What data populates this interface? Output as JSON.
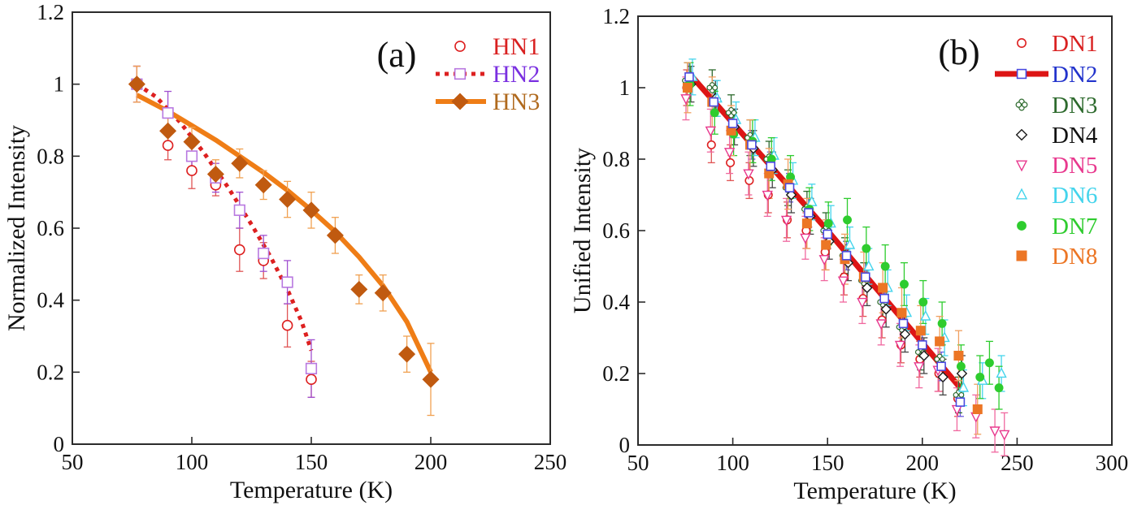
{
  "figure": {
    "background": "#ffffff",
    "frame_color": "#2b2b2b"
  },
  "chart_data": [
    {
      "panel": "a",
      "type": "scatter",
      "error_bars": true,
      "annotation": {
        "text": "(a)"
      },
      "x_axis": {
        "label": "Temperature (K)",
        "min": 50,
        "max": 250,
        "ticks": [
          "50",
          "100",
          "150",
          "200",
          "250"
        ]
      },
      "y_axis": {
        "label": "Normalized Intensity",
        "min": 0,
        "max": 1.2,
        "ticks": [
          "0",
          "0.2",
          "0.4",
          "0.6",
          "0.8",
          "1",
          "1.2"
        ]
      },
      "legend_position": "top-right",
      "series": [
        {
          "name": "HN1",
          "marker": "circle_open",
          "color": "#dd2020",
          "err_color": "#e05555",
          "label_color": "#d92121",
          "x": [
            77,
            90,
            100,
            110,
            120,
            130,
            140,
            150
          ],
          "y": [
            1.0,
            0.83,
            0.76,
            0.72,
            0.54,
            0.51,
            0.33,
            0.18
          ],
          "err": [
            0.05,
            0.04,
            0.05,
            0.03,
            0.06,
            0.05,
            0.06,
            0.05
          ]
        },
        {
          "name": "HN2",
          "marker": "square_open",
          "color": "#b878e0",
          "err_color": "#a050d0",
          "label_color": "#7a2fe0",
          "x": [
            77,
            90,
            100,
            110,
            120,
            130,
            140,
            150
          ],
          "y": [
            1.0,
            0.92,
            0.8,
            0.74,
            0.65,
            0.53,
            0.45,
            0.21
          ],
          "err": [
            0.05,
            0.06,
            0.04,
            0.04,
            0.05,
            0.05,
            0.06,
            0.08
          ],
          "fit": {
            "style": "dotted",
            "color": "#dd2020",
            "width": 5,
            "points": [
              [
                77,
                1.0
              ],
              [
                85,
                0.965
              ],
              [
                95,
                0.895
              ],
              [
                105,
                0.81
              ],
              [
                115,
                0.715
              ],
              [
                125,
                0.61
              ],
              [
                133,
                0.52
              ],
              [
                140,
                0.43
              ],
              [
                146,
                0.34
              ],
              [
                150,
                0.26
              ]
            ]
          }
        },
        {
          "name": "HN3",
          "marker": "diamond_filled",
          "color": "#c05a10",
          "err_color": "#f0a050",
          "label_color": "#b06a1e",
          "x": [
            77,
            90,
            100,
            110,
            120,
            130,
            140,
            150,
            160,
            170,
            180,
            190,
            200
          ],
          "y": [
            1.0,
            0.87,
            0.84,
            0.75,
            0.78,
            0.72,
            0.68,
            0.65,
            0.58,
            0.43,
            0.42,
            0.25,
            0.18
          ],
          "err": [
            0.05,
            0.04,
            0.04,
            0.04,
            0.04,
            0.04,
            0.05,
            0.05,
            0.05,
            0.04,
            0.05,
            0.05,
            0.1
          ],
          "fit": {
            "style": "solid",
            "color": "#ef7d16",
            "width": 6,
            "points": [
              [
                77,
                0.97
              ],
              [
                90,
                0.925
              ],
              [
                100,
                0.885
              ],
              [
                110,
                0.845
              ],
              [
                120,
                0.8
              ],
              [
                130,
                0.755
              ],
              [
                140,
                0.705
              ],
              [
                150,
                0.65
              ],
              [
                160,
                0.59
              ],
              [
                170,
                0.52
              ],
              [
                180,
                0.44
              ],
              [
                190,
                0.34
              ],
              [
                200,
                0.2
              ]
            ]
          }
        }
      ]
    },
    {
      "panel": "b",
      "type": "scatter",
      "error_bars": true,
      "annotation": {
        "text": "(b)"
      },
      "x_axis": {
        "label": "Temperature (K)",
        "min": 50,
        "max": 300,
        "ticks": [
          "50",
          "100",
          "150",
          "200",
          "250",
          "300"
        ]
      },
      "y_axis": {
        "label": "Unified Intensity",
        "min": 0,
        "max": 1.2,
        "ticks": [
          "0",
          "0.2",
          "0.4",
          "0.6",
          "0.8",
          "1",
          "1.2"
        ]
      },
      "legend_position": "top-right",
      "series": [
        {
          "name": "DN1",
          "marker": "circle_open",
          "color": "#dd2020",
          "err_color": "#e05555",
          "label_color": "#d92121",
          "x": [
            77,
            90,
            100,
            110,
            120,
            130,
            140,
            150,
            160,
            170,
            180,
            190,
            200,
            210,
            220
          ],
          "y": [
            1.0,
            0.84,
            0.79,
            0.74,
            0.7,
            0.63,
            0.6,
            0.54,
            0.47,
            0.41,
            0.35,
            0.28,
            0.24,
            0.2,
            0.13
          ],
          "err": 0.05
        },
        {
          "name": "DN2",
          "marker": "square_open",
          "color": "#4a4ae0",
          "err_color": "#6a5ae0",
          "label_color": "#2233cc",
          "x": [
            77,
            90,
            100,
            110,
            120,
            130,
            140,
            150,
            160,
            170,
            180,
            190,
            200,
            210,
            220
          ],
          "y": [
            1.03,
            0.96,
            0.9,
            0.84,
            0.78,
            0.72,
            0.65,
            0.59,
            0.53,
            0.47,
            0.41,
            0.34,
            0.28,
            0.22,
            0.12
          ],
          "err": 0.04,
          "fit": {
            "style": "solid",
            "color": "#dd1515",
            "width": 7,
            "points": [
              [
                77,
                1.04
              ],
              [
                150,
                0.6
              ],
              [
                220,
                0.16
              ]
            ]
          }
        },
        {
          "name": "DN3",
          "marker": "clover_open",
          "color": "#2d6a2d",
          "err_color": "#2d6a2d",
          "label_color": "#2d6a2d",
          "x": [
            77,
            90,
            100,
            110,
            120,
            130,
            140,
            150,
            160,
            170,
            180,
            190,
            200,
            210,
            220
          ],
          "y": [
            1.02,
            1.0,
            0.93,
            0.86,
            0.8,
            0.72,
            0.66,
            0.6,
            0.53,
            0.46,
            0.4,
            0.33,
            0.26,
            0.24,
            0.14
          ],
          "err": 0.05
        },
        {
          "name": "DN4",
          "marker": "diamond_open",
          "color": "#1c1c1c",
          "err_color": "#444444",
          "label_color": "#111111",
          "x": [
            77,
            90,
            100,
            110,
            120,
            130,
            140,
            150,
            160,
            170,
            180,
            190,
            200,
            210,
            220
          ],
          "y": [
            1.01,
            0.97,
            0.89,
            0.83,
            0.77,
            0.7,
            0.64,
            0.57,
            0.51,
            0.44,
            0.38,
            0.31,
            0.25,
            0.19,
            0.2
          ],
          "err": 0.05
        },
        {
          "name": "DN5",
          "marker": "triangle_down_open",
          "color": "#e8388e",
          "err_color": "#f0689f",
          "label_color": "#e8388e",
          "x": [
            77,
            90,
            100,
            110,
            120,
            130,
            140,
            150,
            160,
            170,
            180,
            190,
            200,
            210,
            220,
            230,
            240,
            245
          ],
          "y": [
            0.97,
            0.88,
            0.82,
            0.76,
            0.7,
            0.63,
            0.58,
            0.52,
            0.46,
            0.4,
            0.34,
            0.28,
            0.22,
            0.21,
            0.1,
            0.08,
            0.04,
            0.03
          ],
          "err": 0.06
        },
        {
          "name": "DN6",
          "marker": "triangle_up_open",
          "color": "#44d4ec",
          "err_color": "#44d4ec",
          "label_color": "#44d4ec",
          "x": [
            77,
            90,
            100,
            110,
            120,
            130,
            140,
            150,
            160,
            170,
            180,
            190,
            200,
            210,
            220,
            230,
            240
          ],
          "y": [
            1.03,
            0.97,
            0.91,
            0.86,
            0.81,
            0.74,
            0.68,
            0.62,
            0.56,
            0.5,
            0.44,
            0.37,
            0.36,
            0.3,
            0.16,
            0.18,
            0.2
          ],
          "err": 0.05
        },
        {
          "name": "DN7",
          "marker": "circle_filled",
          "color": "#2ecc2e",
          "err_color": "#2ecc2e",
          "label_color": "#2ecc2e",
          "x": [
            77,
            90,
            100,
            110,
            120,
            130,
            140,
            150,
            160,
            170,
            180,
            190,
            200,
            210,
            220,
            230,
            235,
            240
          ],
          "y": [
            1.01,
            0.93,
            0.87,
            0.85,
            0.8,
            0.75,
            0.66,
            0.62,
            0.63,
            0.55,
            0.5,
            0.45,
            0.4,
            0.34,
            0.22,
            0.19,
            0.23,
            0.16
          ],
          "err": 0.06
        },
        {
          "name": "DN8",
          "marker": "square_filled",
          "color": "#ec7625",
          "err_color": "#f0a060",
          "label_color": "#ec7625",
          "x": [
            77,
            90,
            100,
            110,
            120,
            130,
            140,
            150,
            160,
            170,
            180,
            190,
            200,
            210,
            220,
            230
          ],
          "y": [
            1.0,
            0.96,
            0.88,
            0.84,
            0.76,
            0.73,
            0.62,
            0.56,
            0.52,
            0.47,
            0.44,
            0.37,
            0.32,
            0.29,
            0.25,
            0.1
          ],
          "err": 0.07
        }
      ]
    }
  ]
}
